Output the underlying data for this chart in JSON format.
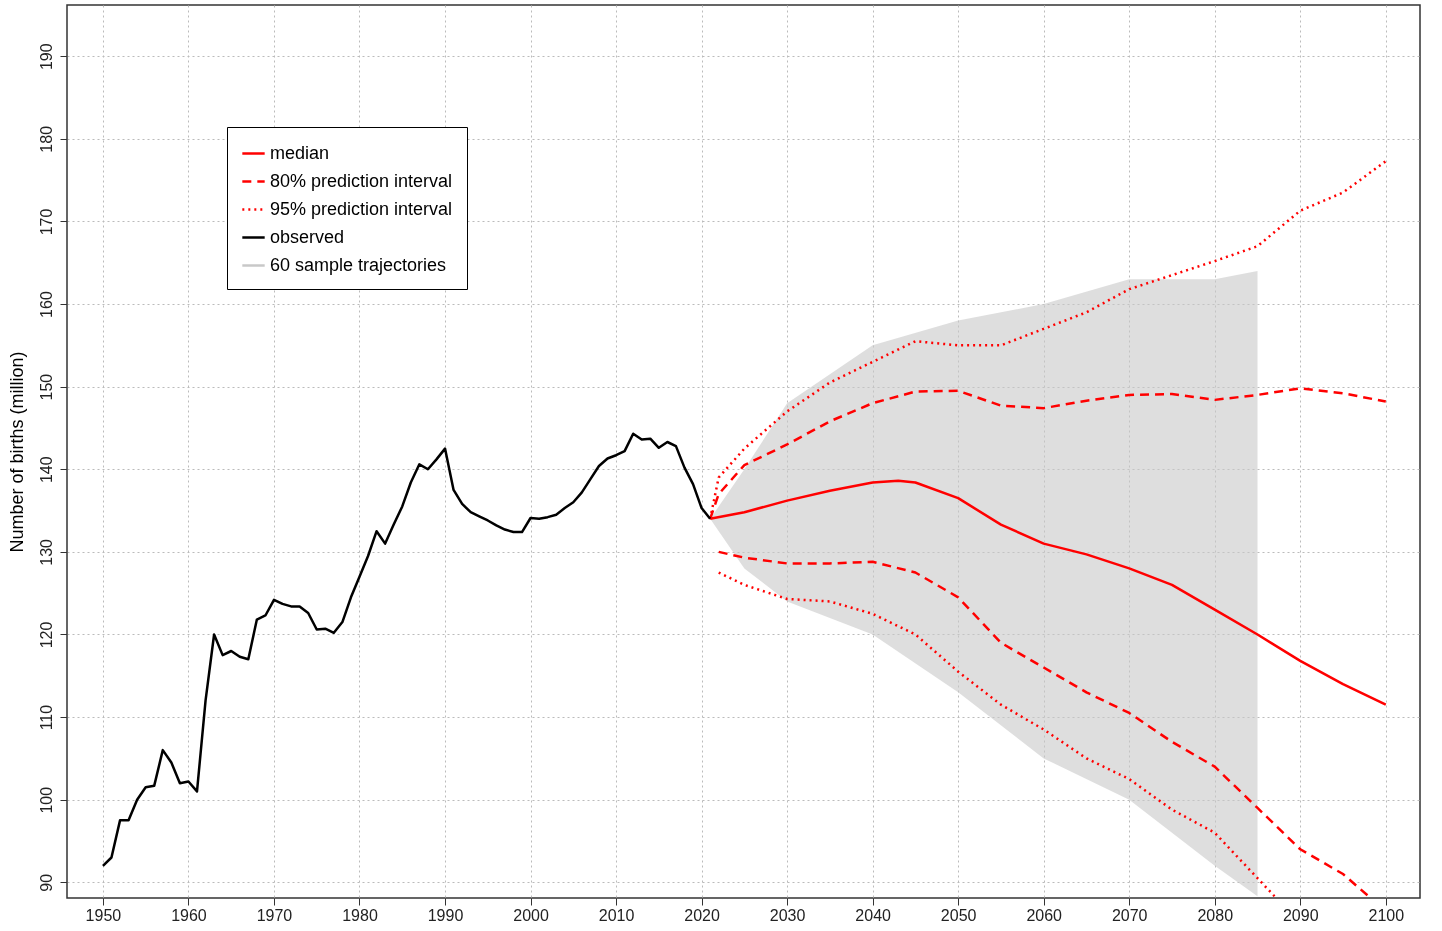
{
  "chart_data": {
    "type": "line",
    "ylabel": "Number of births (million)",
    "xlim": [
      1945.8,
      2104
    ],
    "ylim": [
      88.1,
      196.2
    ],
    "xticks": [
      1950,
      1960,
      1970,
      1980,
      1990,
      2000,
      2010,
      2020,
      2030,
      2040,
      2050,
      2060,
      2070,
      2080,
      2090,
      2100
    ],
    "yticks": [
      90,
      100,
      110,
      120,
      130,
      140,
      150,
      160,
      170,
      180,
      190
    ],
    "grid": true,
    "legend": "top left",
    "marker": "none",
    "series": [
      {
        "name": "median",
        "color": "#ff0000",
        "line_style": "solid",
        "x": [
          2021,
          2025,
          2030,
          2035,
          2040,
          2043,
          2045,
          2050,
          2055,
          2060,
          2065,
          2070,
          2075,
          2080,
          2085,
          2090,
          2095,
          2100
        ],
        "values": [
          134,
          134.8,
          136.2,
          137.4,
          138.4,
          138.6,
          138.4,
          136.5,
          133.3,
          131,
          129.7,
          128,
          126,
          123,
          120,
          116.8,
          114,
          111.5
        ]
      },
      {
        "name": "80% prediction interval",
        "color": "#ff0000",
        "line_style": "dashed",
        "x": [
          2021,
          2022,
          2025,
          2030,
          2035,
          2040,
          2045,
          2050,
          2055,
          2060,
          2065,
          2070,
          2075,
          2080,
          2085,
          2090,
          2095,
          2100
        ],
        "values": [
          134,
          137,
          140.5,
          143,
          145.8,
          148,
          149.4,
          149.5,
          147.7,
          147.4,
          148.3,
          149,
          149.1,
          148.4,
          149,
          149.8,
          149.2,
          148.2
        ]
      },
      {
        "color": "#ff0000",
        "line_style": "dashed",
        "x": [
          2022,
          2025,
          2030,
          2035,
          2040,
          2045,
          2050,
          2055,
          2060,
          2065,
          2070,
          2075,
          2080,
          2085,
          2090,
          2095,
          2098
        ],
        "values": [
          130,
          129.3,
          128.6,
          128.6,
          128.8,
          127.5,
          124.5,
          119,
          116,
          113,
          110.5,
          107,
          104,
          99,
          94,
          91,
          88.3
        ]
      },
      {
        "name": "95% prediction interval",
        "color": "#ff0000",
        "line_style": "dotted",
        "x": [
          2021,
          2022,
          2025,
          2030,
          2035,
          2040,
          2045,
          2050,
          2055,
          2060,
          2065,
          2070,
          2075,
          2080,
          2085,
          2090,
          2095,
          2100
        ],
        "values": [
          134,
          139,
          142.5,
          147,
          150.5,
          153,
          155.5,
          155,
          155,
          157,
          159,
          161.8,
          163.5,
          165.2,
          167,
          171.3,
          173.5,
          177.3
        ]
      },
      {
        "color": "#ff0000",
        "line_style": "dotted",
        "x": [
          2022,
          2025,
          2030,
          2035,
          2040,
          2045,
          2050,
          2055,
          2060,
          2065,
          2070,
          2075,
          2080,
          2085,
          2087
        ],
        "values": [
          127.5,
          126,
          124.3,
          124,
          122.5,
          120,
          115.5,
          111.5,
          108.5,
          105,
          102.5,
          98.8,
          96,
          90.5,
          88.3
        ]
      },
      {
        "name": "observed",
        "color": "#000000",
        "line_style": "solid",
        "x": [
          1950,
          1951,
          1952,
          1953,
          1954,
          1955,
          1956,
          1957,
          1958,
          1959,
          1960,
          1961,
          1962,
          1963,
          1964,
          1965,
          1966,
          1967,
          1968,
          1969,
          1970,
          1971,
          1972,
          1973,
          1974,
          1975,
          1976,
          1977,
          1978,
          1979,
          1980,
          1981,
          1982,
          1983,
          1984,
          1985,
          1986,
          1987,
          1988,
          1989,
          1990,
          1991,
          1992,
          1993,
          1994,
          1995,
          1996,
          1997,
          1998,
          1999,
          2000,
          2001,
          2002,
          2003,
          2004,
          2005,
          2006,
          2007,
          2008,
          2009,
          2010,
          2011,
          2012,
          2013,
          2014,
          2015,
          2016,
          2017,
          2018,
          2019,
          2020,
          2021
        ],
        "values": [
          92,
          93,
          97.5,
          97.5,
          100,
          101.5,
          101.7,
          106,
          104.5,
          102,
          102.2,
          101,
          112,
          120,
          117.5,
          118,
          117.3,
          117,
          121.8,
          122.3,
          124.2,
          123.7,
          123.4,
          123.4,
          122.6,
          120.6,
          120.7,
          120.2,
          121.5,
          124.5,
          127,
          129.5,
          132.5,
          131,
          133.3,
          135.5,
          138.4,
          140.6,
          140,
          141.2,
          142.5,
          137.5,
          135.8,
          134.8,
          134.3,
          133.8,
          133.2,
          132.7,
          132.4,
          132.4,
          134.1,
          134,
          134.2,
          134.5,
          135.3,
          136,
          137.2,
          138.8,
          140.4,
          141.3,
          141.7,
          142.2,
          144.3,
          143.6,
          143.7,
          142.6,
          143.3,
          142.8,
          140.2,
          138.2,
          135.3,
          134
        ]
      },
      {
        "name": "60 sample trajectories",
        "type": "area",
        "color": "#c8c8c8",
        "x": [
          2021,
          2025,
          2030,
          2040,
          2050,
          2060,
          2070,
          2080,
          2085
        ],
        "values": [
          null,
          null,
          null,
          null,
          null,
          null,
          null,
          null,
          null
        ],
        "lower": [
          134,
          128,
          124,
          120,
          113,
          105,
          100,
          92,
          88.3
        ],
        "upper": [
          134,
          140,
          148,
          155,
          158,
          160,
          163,
          163,
          164
        ]
      }
    ]
  }
}
